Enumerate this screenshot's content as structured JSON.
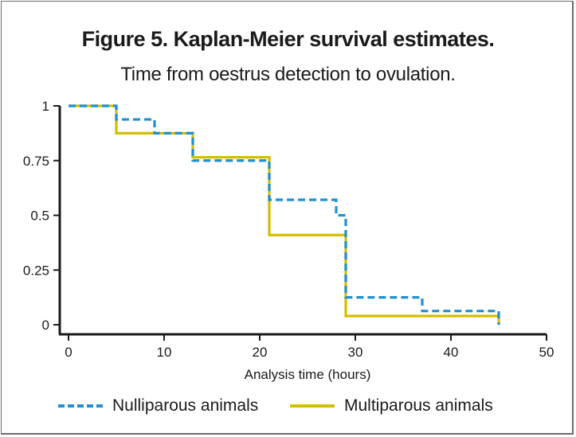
{
  "chart_data": {
    "type": "line",
    "step": true,
    "title": "Figure 5. Kaplan-Meier survival estimates.",
    "subtitle": "Time from oestrus detection to ovulation.",
    "xlabel": "Analysis time (hours)",
    "ylabel": "",
    "xlim": [
      0,
      50
    ],
    "ylim": [
      0,
      1
    ],
    "xticks": [
      0,
      10,
      20,
      30,
      40,
      50
    ],
    "xtick_labels": [
      "0",
      "10",
      "20",
      "30",
      "40",
      "50"
    ],
    "yticks": [
      0,
      0.25,
      0.5,
      0.75,
      1
    ],
    "ytick_labels": [
      "0",
      "0.25",
      "0.5",
      "0.75",
      "1"
    ],
    "grid": false,
    "legend": "bottom",
    "series": [
      {
        "name": "Nulliparous animals",
        "color": "#1f8fd0",
        "style": "dashed",
        "x": [
          0,
          5,
          9,
          13,
          21,
          28,
          29,
          37,
          45
        ],
        "y": [
          1,
          0.938,
          0.875,
          0.75,
          0.571,
          0.5,
          0.125,
          0.063,
          0
        ]
      },
      {
        "name": "Multiparous animals",
        "color": "#d4be00",
        "style": "solid",
        "x": [
          0,
          5,
          13,
          21,
          29,
          45
        ],
        "y": [
          1,
          0.875,
          0.765,
          0.41,
          0.04,
          0
        ]
      }
    ]
  }
}
